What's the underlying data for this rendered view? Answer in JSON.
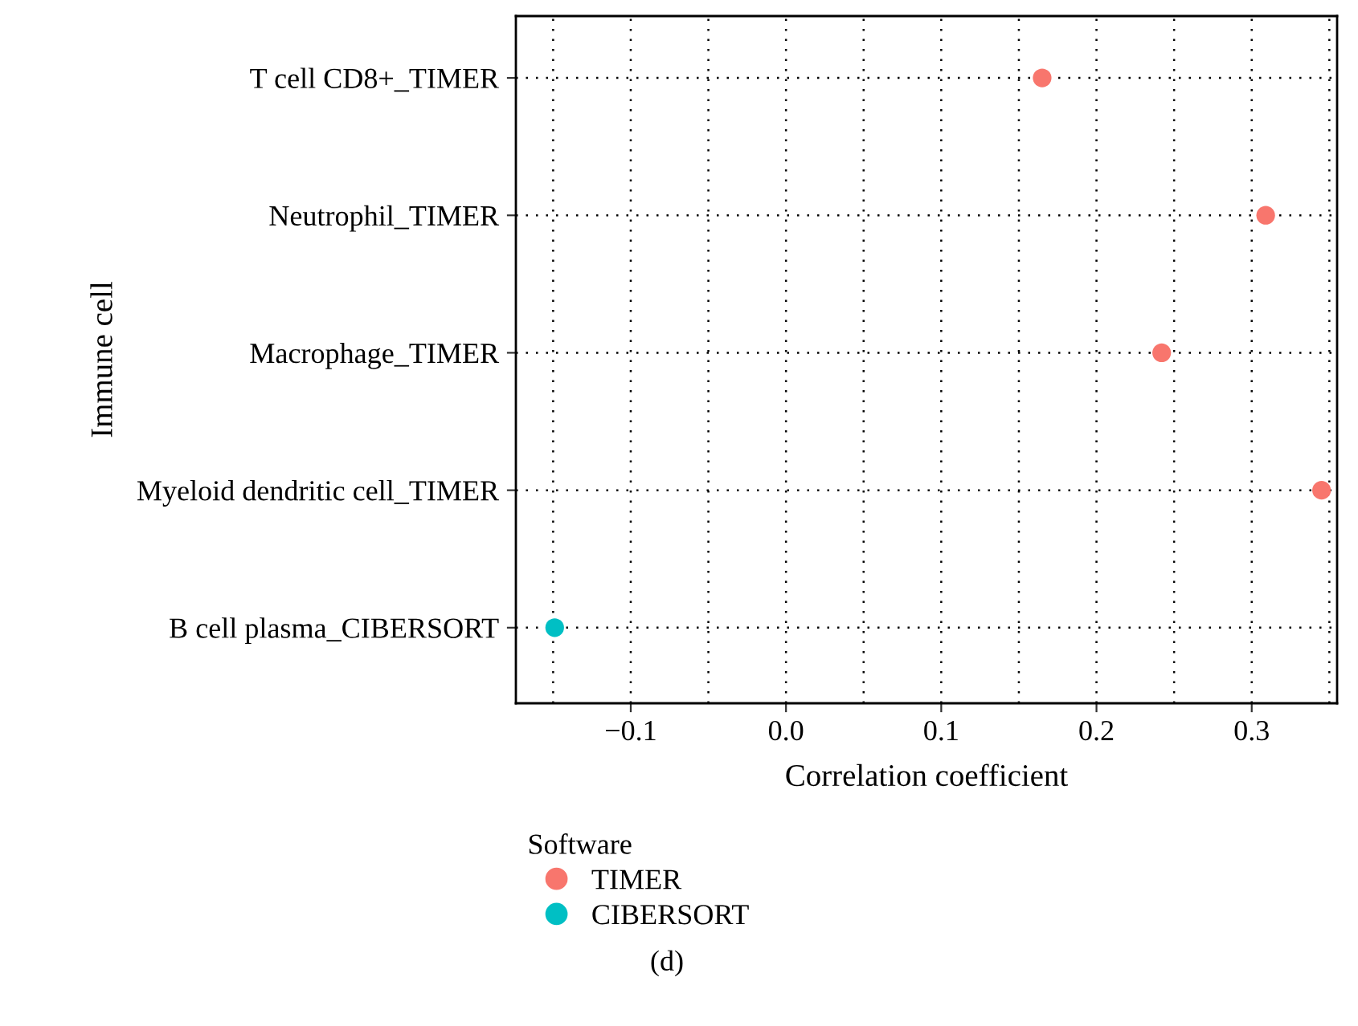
{
  "chart_data": {
    "type": "scatter",
    "orientation": "horizontal",
    "xlabel": "Correlation coefficient",
    "ylabel": "Immune cell",
    "legend_title": "Software",
    "legend": "bottom",
    "grid": true,
    "marker": "circle",
    "categories": [
      "T cell CD8+_TIMER",
      "Neutrophil_TIMER",
      "Macrophage_TIMER",
      "Myeloid dendritic cell_TIMER",
      "B cell plasma_CIBERSORT"
    ],
    "series": [
      {
        "name": "TIMER",
        "color": "#f8766d",
        "values": [
          0.165,
          0.309,
          0.242,
          0.345,
          null
        ]
      },
      {
        "name": "CIBERSORT",
        "color": "#00bfc4",
        "values": [
          null,
          null,
          null,
          null,
          -0.149
        ]
      }
    ],
    "xlim": [
      -0.174,
      0.355
    ],
    "xticks": [
      {
        "value": -0.15,
        "label": null
      },
      {
        "value": -0.1,
        "label": "−0.1"
      },
      {
        "value": -0.05,
        "label": null
      },
      {
        "value": 0.0,
        "label": "0.0"
      },
      {
        "value": 0.05,
        "label": null
      },
      {
        "value": 0.1,
        "label": "0.1"
      },
      {
        "value": 0.15,
        "label": null
      },
      {
        "value": 0.2,
        "label": "0.2"
      },
      {
        "value": 0.25,
        "label": null
      },
      {
        "value": 0.3,
        "label": "0.3"
      },
      {
        "value": 0.35,
        "label": null
      }
    ],
    "annotations": [
      "(d)"
    ]
  }
}
